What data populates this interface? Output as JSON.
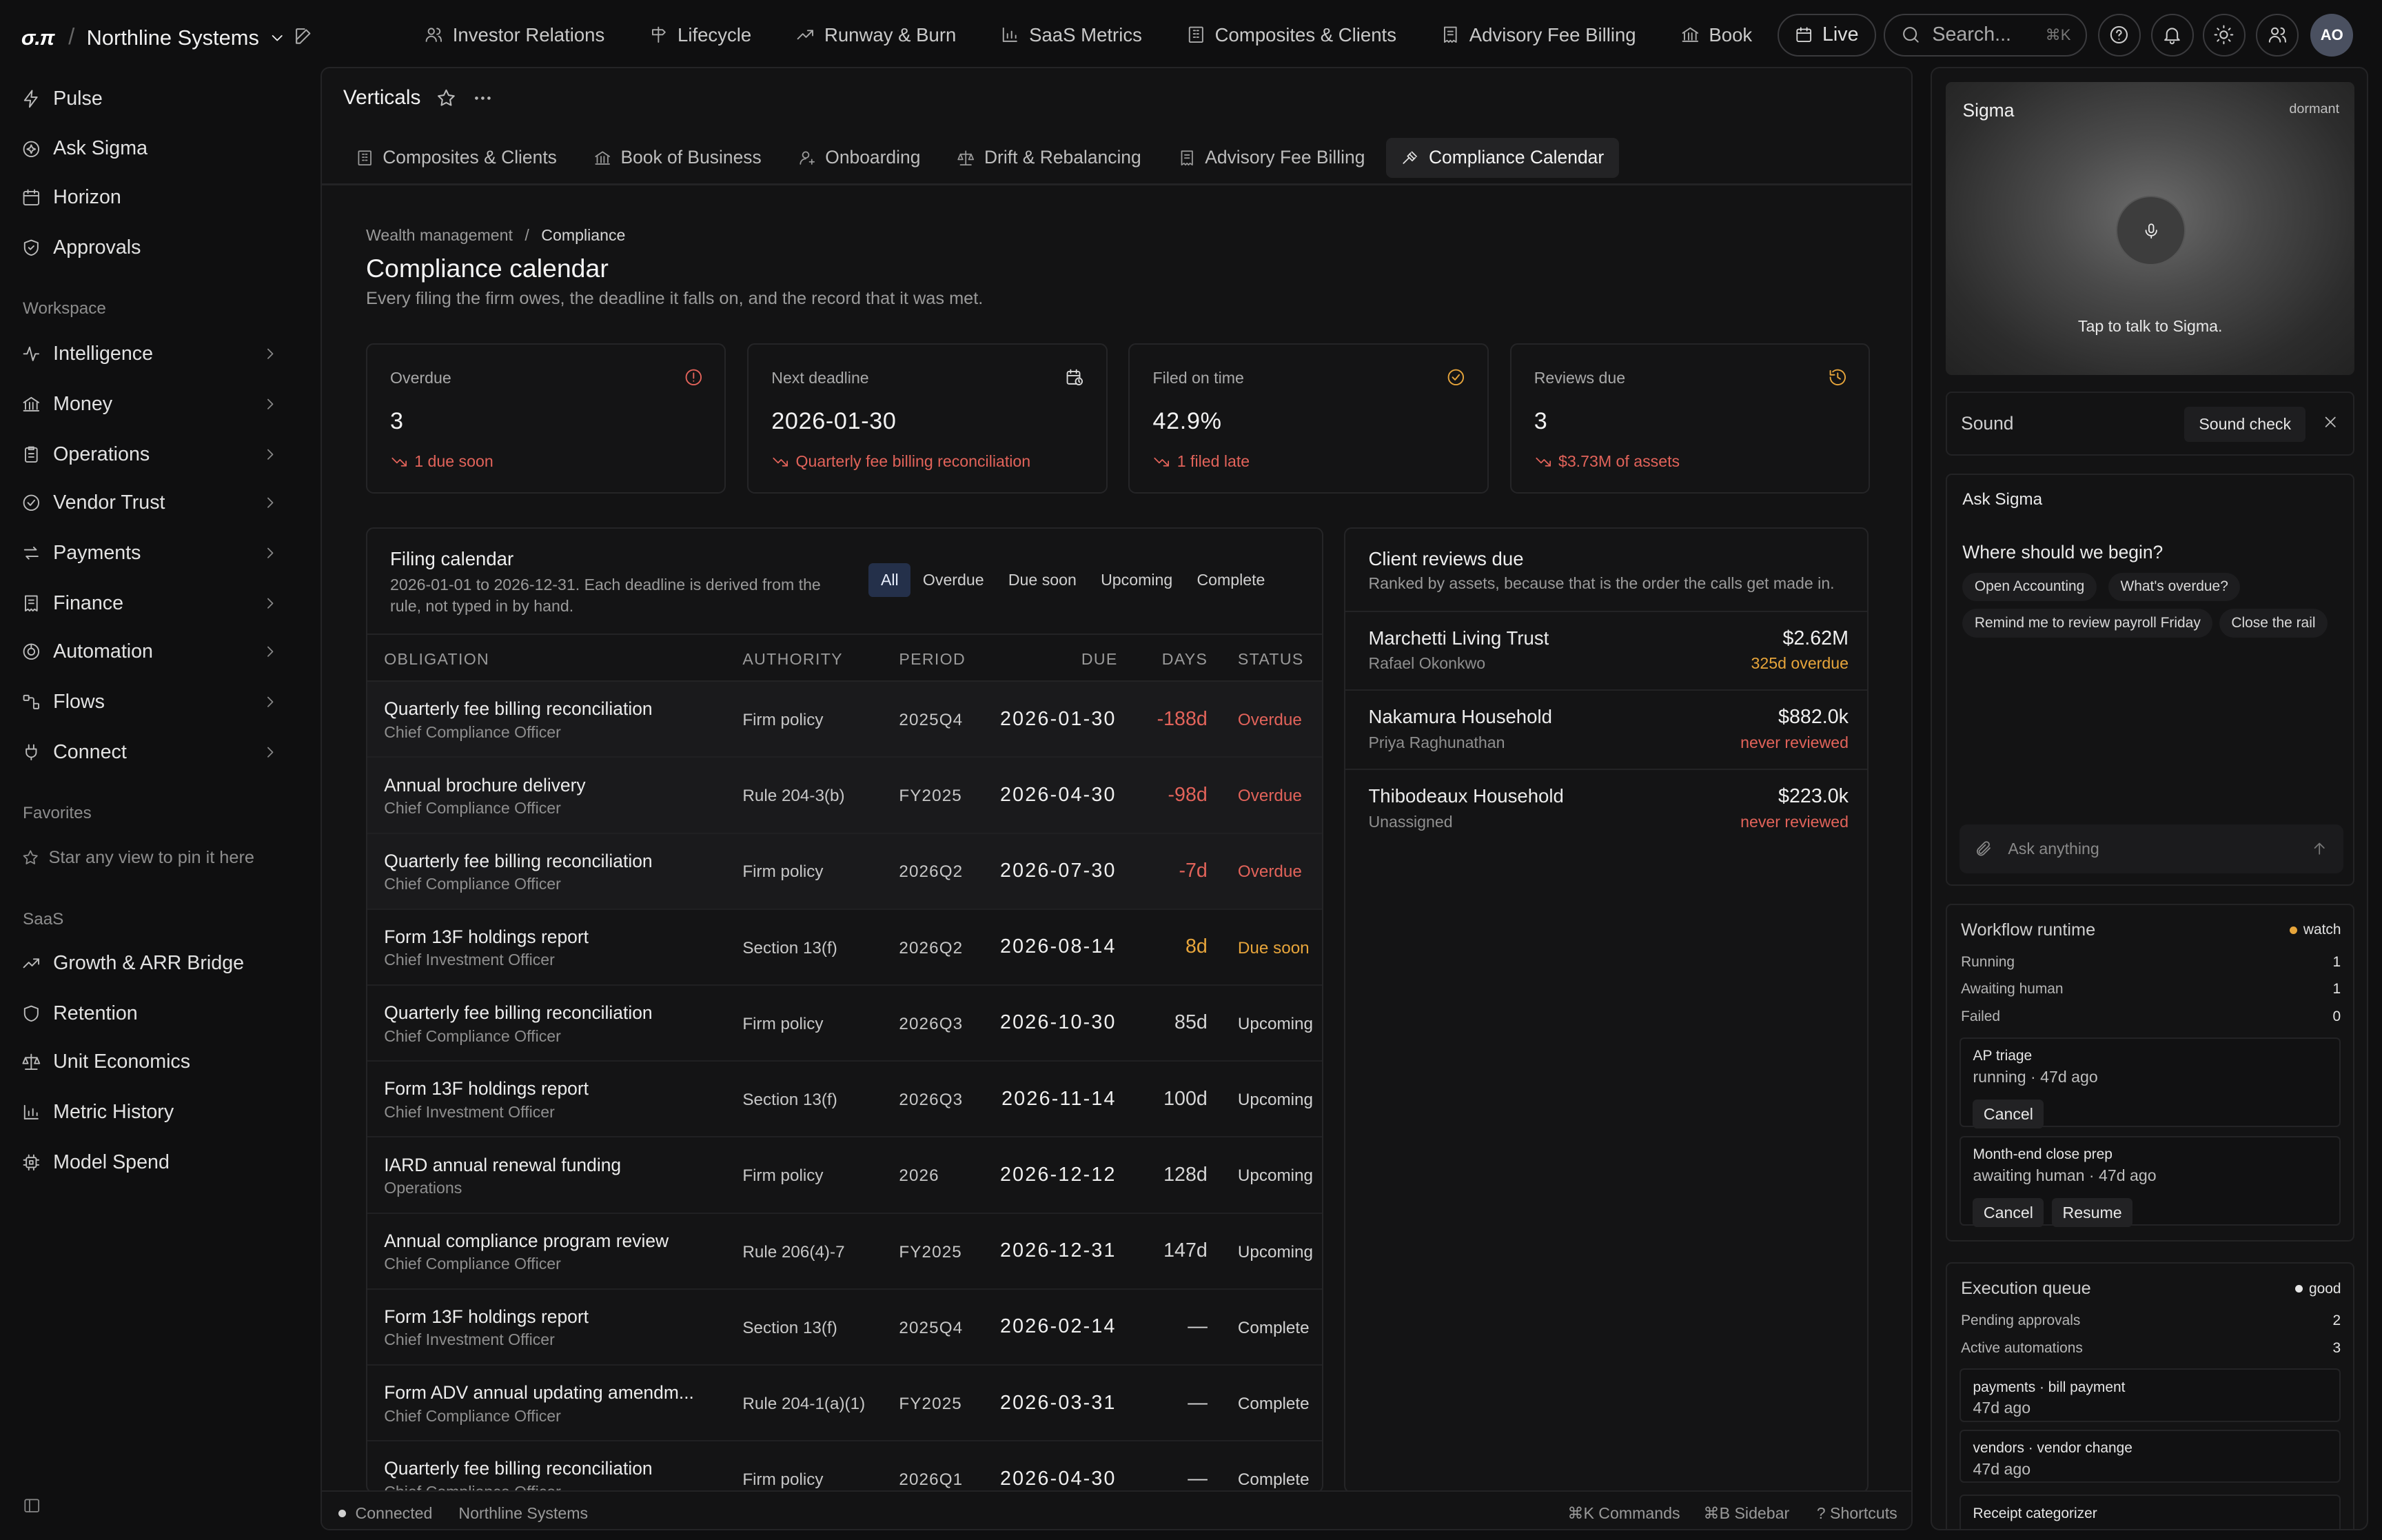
{
  "app": {
    "logo": "σ.π",
    "workspace": "Northline Systems"
  },
  "topnav": [
    {
      "label": "Investor Relations",
      "icon": "users-icon"
    },
    {
      "label": "Lifecycle",
      "icon": "signpost-icon"
    },
    {
      "label": "Runway & Burn",
      "icon": "trend-icon"
    },
    {
      "label": "SaaS Metrics",
      "icon": "bars-icon"
    },
    {
      "label": "Composites & Clients",
      "icon": "building-icon"
    },
    {
      "label": "Advisory Fee Billing",
      "icon": "receipt-icon"
    },
    {
      "label": "Book",
      "icon": "bank-icon"
    }
  ],
  "top_actions": {
    "live": "Live",
    "search_placeholder": "Search...",
    "search_kbd": "⌘K",
    "avatar": "AO"
  },
  "sidebar": {
    "primary": [
      {
        "label": "Pulse",
        "icon": "zap-icon"
      },
      {
        "label": "Ask Sigma",
        "icon": "sparkle-icon"
      },
      {
        "label": "Horizon",
        "icon": "calendar-icon"
      },
      {
        "label": "Approvals",
        "icon": "shield-icon"
      }
    ],
    "workspace_label": "Workspace",
    "workspace": [
      {
        "label": "Intelligence",
        "icon": "pulse-icon"
      },
      {
        "label": "Money",
        "icon": "bank-icon"
      },
      {
        "label": "Operations",
        "icon": "clipboard-icon"
      },
      {
        "label": "Vendor Trust",
        "icon": "check-circle-icon"
      },
      {
        "label": "Payments",
        "icon": "arrows-icon"
      },
      {
        "label": "Finance",
        "icon": "receipt-icon"
      },
      {
        "label": "Automation",
        "icon": "bot-icon"
      },
      {
        "label": "Flows",
        "icon": "flow-icon"
      },
      {
        "label": "Connect",
        "icon": "plug-icon"
      }
    ],
    "favorites_label": "Favorites",
    "favorites_hint": "Star any view to pin it here",
    "saas_label": "SaaS",
    "saas": [
      {
        "label": "Growth & ARR Bridge",
        "icon": "trend-icon"
      },
      {
        "label": "Retention",
        "icon": "shield-icon"
      },
      {
        "label": "Unit Economics",
        "icon": "scale-icon"
      },
      {
        "label": "Metric History",
        "icon": "bars-icon"
      },
      {
        "label": "Model Spend",
        "icon": "chip-icon"
      }
    ]
  },
  "main": {
    "title": "Verticals",
    "subtabs": [
      {
        "label": "Composites & Clients",
        "icon": "building-icon"
      },
      {
        "label": "Book of Business",
        "icon": "bank-icon"
      },
      {
        "label": "Onboarding",
        "icon": "user-plus-icon"
      },
      {
        "label": "Drift & Rebalancing",
        "icon": "scale-icon"
      },
      {
        "label": "Advisory Fee Billing",
        "icon": "receipt-icon"
      },
      {
        "label": "Compliance Calendar",
        "icon": "gavel-icon"
      }
    ],
    "active_subtab": "Compliance Calendar",
    "breadcrumb": {
      "parent": "Wealth management",
      "sep": "/",
      "current": "Compliance"
    },
    "page_title": "Compliance calendar",
    "page_subtitle": "Every filing the firm owes, the deadline it falls on, and the record that it was met."
  },
  "stats": [
    {
      "label": "Overdue",
      "value": "3",
      "note": "1 due soon",
      "icon": "alert-circle-icon",
      "icon_color": "#e2635a"
    },
    {
      "label": "Next deadline",
      "value": "2026-01-30",
      "note": "Quarterly fee billing reconciliation",
      "icon": "calendar-clock-icon",
      "icon_color": "#d8d8d8"
    },
    {
      "label": "Filed on time",
      "value": "42.9%",
      "note": "1 filed late",
      "icon": "check-circle-icon",
      "icon_color": "#e7a53b"
    },
    {
      "label": "Reviews due",
      "value": "3",
      "note": "$3.73M of assets",
      "icon": "history-icon",
      "icon_color": "#e7a53b"
    }
  ],
  "filing": {
    "title": "Filing calendar",
    "subtitle": "2026-01-01 to 2026-12-31. Each deadline is derived from the rule, not typed in by hand.",
    "filters": [
      "All",
      "Overdue",
      "Due soon",
      "Upcoming",
      "Complete"
    ],
    "active_filter": "All",
    "columns": {
      "obligation": "OBLIGATION",
      "authority": "AUTHORITY",
      "period": "PERIOD",
      "due": "DUE",
      "days": "DAYS",
      "status": "STATUS"
    },
    "rows": [
      {
        "obligation": "Quarterly fee billing reconciliation",
        "owner": "Chief Compliance Officer",
        "authority": "Firm policy",
        "period": "2025Q4",
        "due": "2026-01-30",
        "days": "-188d",
        "status": "Overdue",
        "tone": "over"
      },
      {
        "obligation": "Annual brochure delivery",
        "owner": "Chief Compliance Officer",
        "authority": "Rule 204-3(b)",
        "period": "FY2025",
        "due": "2026-04-30",
        "days": "-98d",
        "status": "Overdue",
        "tone": "over"
      },
      {
        "obligation": "Quarterly fee billing reconciliation",
        "owner": "Chief Compliance Officer",
        "authority": "Firm policy",
        "period": "2026Q2",
        "due": "2026-07-30",
        "days": "-7d",
        "status": "Overdue",
        "tone": "over"
      },
      {
        "obligation": "Form 13F holdings report",
        "owner": "Chief Investment Officer",
        "authority": "Section 13(f)",
        "period": "2026Q2",
        "due": "2026-08-14",
        "days": "8d",
        "status": "Due soon",
        "tone": "soon"
      },
      {
        "obligation": "Quarterly fee billing reconciliation",
        "owner": "Chief Compliance Officer",
        "authority": "Firm policy",
        "period": "2026Q3",
        "due": "2026-10-30",
        "days": "85d",
        "status": "Upcoming",
        "tone": "normal"
      },
      {
        "obligation": "Form 13F holdings report",
        "owner": "Chief Investment Officer",
        "authority": "Section 13(f)",
        "period": "2026Q3",
        "due": "2026-11-14",
        "days": "100d",
        "status": "Upcoming",
        "tone": "normal"
      },
      {
        "obligation": "IARD annual renewal funding",
        "owner": "Operations",
        "authority": "Firm policy",
        "period": "2026",
        "due": "2026-12-12",
        "days": "128d",
        "status": "Upcoming",
        "tone": "normal"
      },
      {
        "obligation": "Annual compliance program review",
        "owner": "Chief Compliance Officer",
        "authority": "Rule 206(4)-7",
        "period": "FY2025",
        "due": "2026-12-31",
        "days": "147d",
        "status": "Upcoming",
        "tone": "normal"
      },
      {
        "obligation": "Form 13F holdings report",
        "owner": "Chief Investment Officer",
        "authority": "Section 13(f)",
        "period": "2025Q4",
        "due": "2026-02-14",
        "days": "—",
        "status": "Complete",
        "tone": "normal"
      },
      {
        "obligation": "Form ADV annual updating amendm...",
        "owner": "Chief Compliance Officer",
        "authority": "Rule 204-1(a)(1)",
        "period": "FY2025",
        "due": "2026-03-31",
        "days": "—",
        "status": "Complete",
        "tone": "normal"
      },
      {
        "obligation": "Quarterly fee billing reconciliation",
        "owner": "Chief Compliance Officer",
        "authority": "Firm policy",
        "period": "2026Q1",
        "due": "2026-04-30",
        "days": "—",
        "status": "Complete",
        "tone": "normal"
      }
    ]
  },
  "reviews": {
    "title": "Client reviews due",
    "subtitle": "Ranked by assets, because that is the order the calls get made in.",
    "rows": [
      {
        "name": "Marchetti Living Trust",
        "advisor": "Rafael Okonkwo",
        "assets": "$2.62M",
        "state": "325d overdue",
        "tone": "soon"
      },
      {
        "name": "Nakamura Household",
        "advisor": "Priya Raghunathan",
        "assets": "$882.0k",
        "state": "never reviewed",
        "tone": "over"
      },
      {
        "name": "Thibodeaux Household",
        "advisor": "Unassigned",
        "assets": "$223.0k",
        "state": "never reviewed",
        "tone": "over"
      }
    ]
  },
  "statusbar": {
    "connection": "Connected",
    "org": "Northline Systems",
    "shortcuts": [
      "⌘K Commands",
      "⌘B Sidebar",
      "? Shortcuts"
    ]
  },
  "rpanel": {
    "voice": {
      "title": "Sigma",
      "state": "dormant",
      "hint": "Tap to talk to Sigma."
    },
    "sound": {
      "label": "Sound",
      "button": "Sound check"
    },
    "ask": {
      "title": "Ask Sigma",
      "prompt": "Where should we begin?",
      "chips": [
        "Open Accounting",
        "What's overdue?",
        "Remind me to review payroll Friday",
        "Close the rail"
      ],
      "placeholder": "Ask anything"
    },
    "workflow": {
      "title": "Workflow runtime",
      "badge": "watch",
      "badge_color": "#e7a53b",
      "stats": [
        {
          "k": "Running",
          "v": "1"
        },
        {
          "k": "Awaiting human",
          "v": "1"
        },
        {
          "k": "Failed",
          "v": "0"
        }
      ],
      "jobs": [
        {
          "name": "AP triage",
          "state": "running · 47d ago",
          "actions": [
            "Cancel"
          ]
        },
        {
          "name": "Month-end close prep",
          "state": "awaiting human · 47d ago",
          "actions": [
            "Cancel",
            "Resume"
          ]
        }
      ]
    },
    "queue": {
      "title": "Execution queue",
      "badge": "good",
      "badge_color": "#e6e6e6",
      "stats": [
        {
          "k": "Pending approvals",
          "v": "2"
        },
        {
          "k": "Active automations",
          "v": "3"
        }
      ],
      "items": [
        {
          "name": "payments · bill payment",
          "when": "47d ago"
        },
        {
          "name": "vendors · vendor change",
          "when": "47d ago"
        },
        {
          "name": "Receipt categorizer",
          "when": ""
        }
      ]
    }
  }
}
